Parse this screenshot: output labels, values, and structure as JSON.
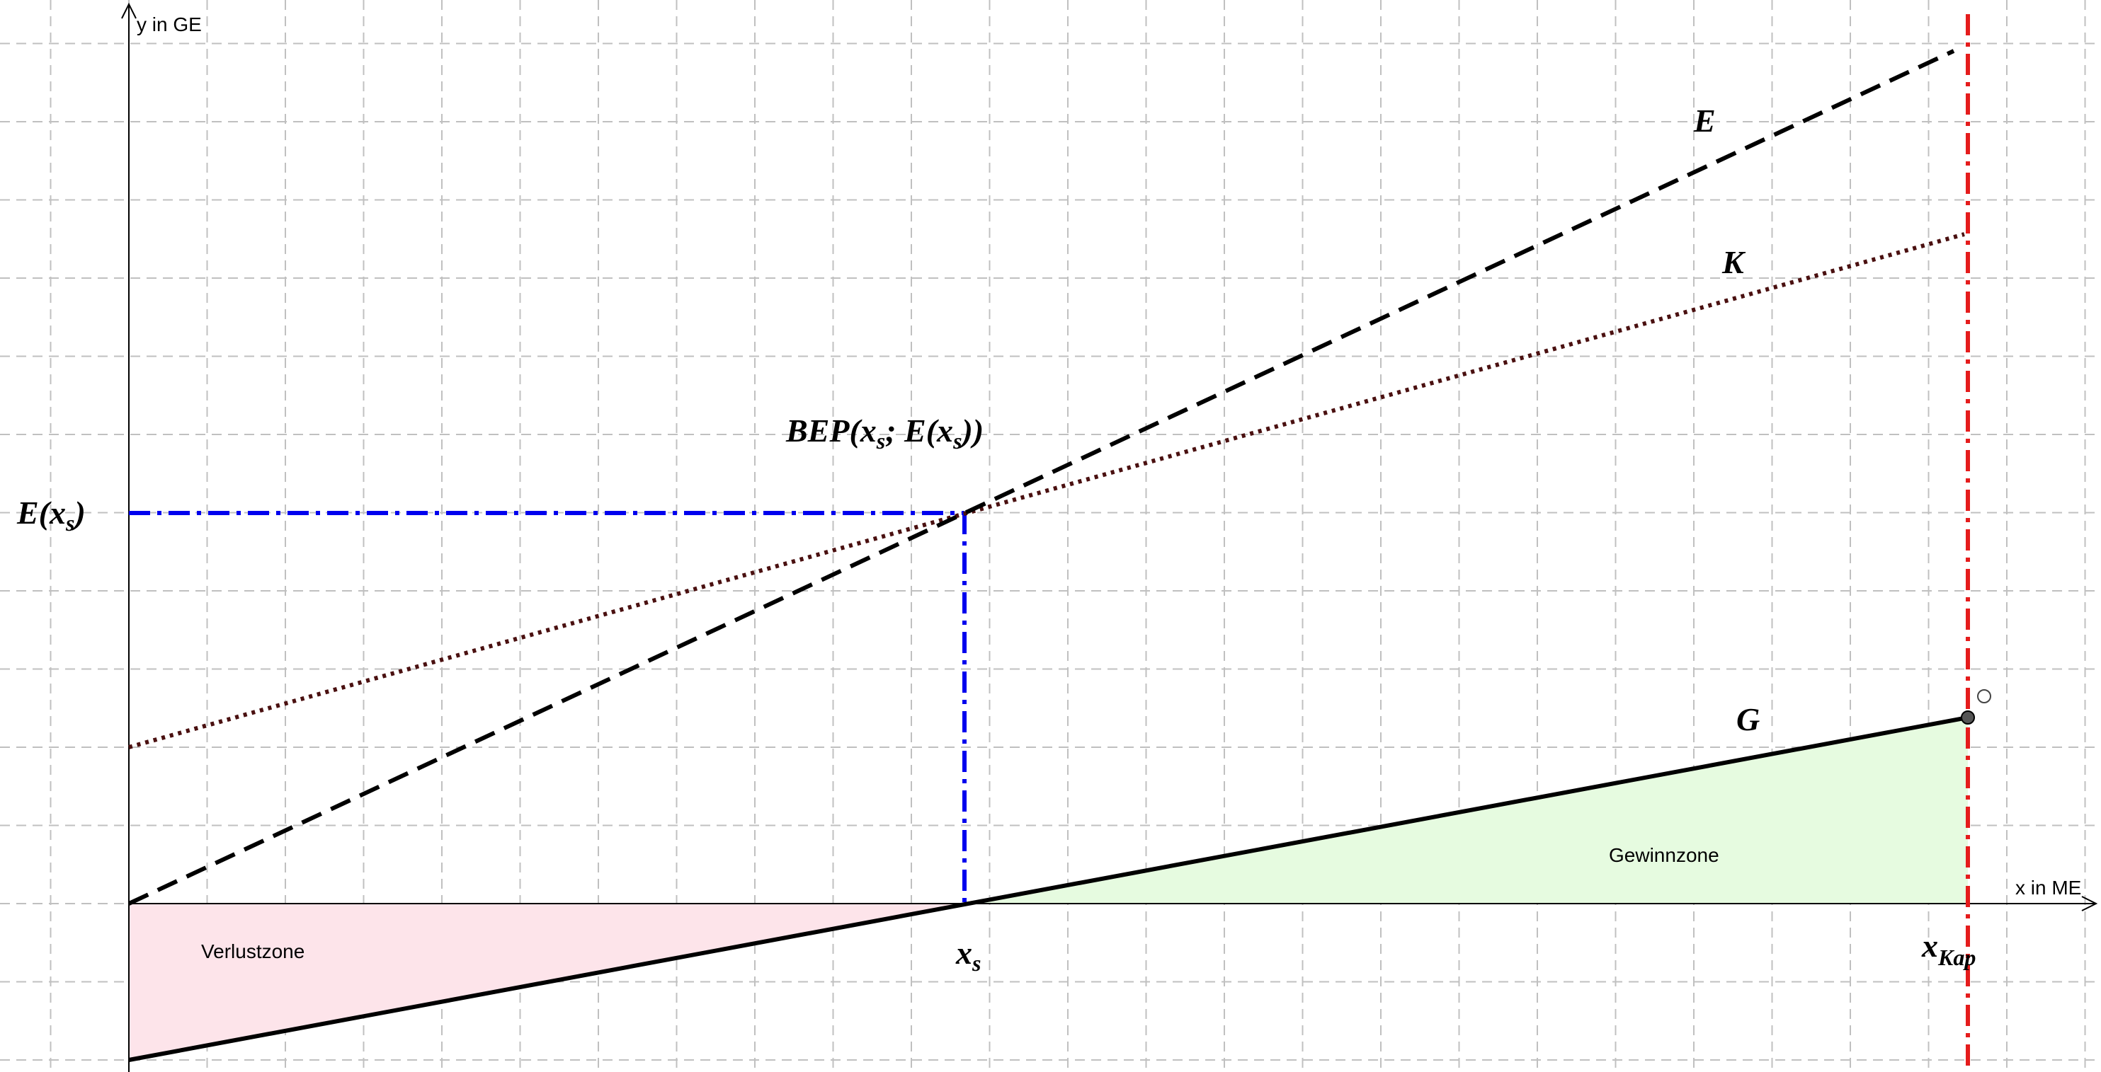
{
  "axes": {
    "y_label": "y in GE",
    "x_label": "x in ME"
  },
  "curves": {
    "revenue": "E",
    "cost": "K",
    "profit": "G"
  },
  "break_even": {
    "label": [
      "BEP(x",
      "s",
      "; E(x",
      "s",
      "))"
    ],
    "y_label": [
      "E(x",
      "s",
      ")"
    ],
    "x_label": [
      "x",
      "s"
    ]
  },
  "capacity": {
    "x_label": [
      "x",
      "Kap"
    ]
  },
  "zones": {
    "loss": "Verlustzone",
    "profit": "Gewinnzone"
  }
}
